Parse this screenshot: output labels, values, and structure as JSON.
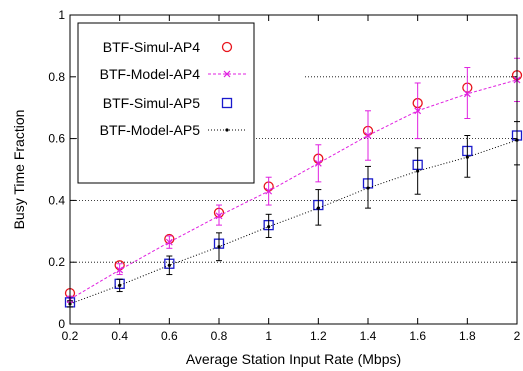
{
  "chart_data": {
    "type": "line",
    "title": "",
    "xlabel": "Average Station Input Rate (Mbps)",
    "ylabel": "Busy Time Fraction",
    "xlim": [
      0.2,
      2
    ],
    "ylim": [
      0,
      1
    ],
    "x_ticks": [
      "0.2",
      "0.4",
      "0.6",
      "0.8",
      "1",
      "1.2",
      "1.4",
      "1.6",
      "1.8",
      "2"
    ],
    "y_ticks": [
      "0",
      "0.2",
      "0.4",
      "0.6",
      "0.8",
      "1"
    ],
    "grid": "horizontal dotted",
    "legend_position": "top-left",
    "x": [
      0.2,
      0.4,
      0.6,
      0.8,
      1.0,
      1.2,
      1.4,
      1.6,
      1.8,
      2.0
    ],
    "series": [
      {
        "name": "BTF-Simul-AP4",
        "marker": "circle",
        "line": "none",
        "color": "#e8141c",
        "values": [
          0.1,
          0.19,
          0.275,
          0.36,
          0.445,
          0.535,
          0.625,
          0.715,
          0.765,
          0.805
        ]
      },
      {
        "name": "BTF-Model-AP4",
        "marker": "x",
        "line": "dashed",
        "color": "#e020e0",
        "values": [
          0.08,
          0.175,
          0.265,
          0.35,
          0.43,
          0.52,
          0.61,
          0.69,
          0.745,
          0.79
        ],
        "error_low": [
          0.07,
          0.16,
          0.245,
          0.32,
          0.385,
          0.46,
          0.53,
          0.6,
          0.665,
          0.72
        ],
        "error_high": [
          0.09,
          0.195,
          0.285,
          0.385,
          0.475,
          0.58,
          0.69,
          0.78,
          0.83,
          0.86
        ]
      },
      {
        "name": "BTF-Simul-AP5",
        "marker": "square",
        "line": "none",
        "color": "#1a1acc",
        "values": [
          0.07,
          0.13,
          0.195,
          0.26,
          0.32,
          0.385,
          0.455,
          0.515,
          0.56,
          0.61
        ]
      },
      {
        "name": "BTF-Model-AP5",
        "marker": "dot",
        "line": "dotted",
        "color": "#000000",
        "values": [
          0.065,
          0.125,
          0.19,
          0.25,
          0.315,
          0.375,
          0.44,
          0.495,
          0.54,
          0.595
        ],
        "error_low": [
          0.055,
          0.105,
          0.16,
          0.205,
          0.28,
          0.32,
          0.375,
          0.42,
          0.475,
          0.515
        ],
        "error_high": [
          0.075,
          0.145,
          0.22,
          0.295,
          0.355,
          0.435,
          0.51,
          0.57,
          0.61,
          0.655
        ]
      }
    ]
  }
}
